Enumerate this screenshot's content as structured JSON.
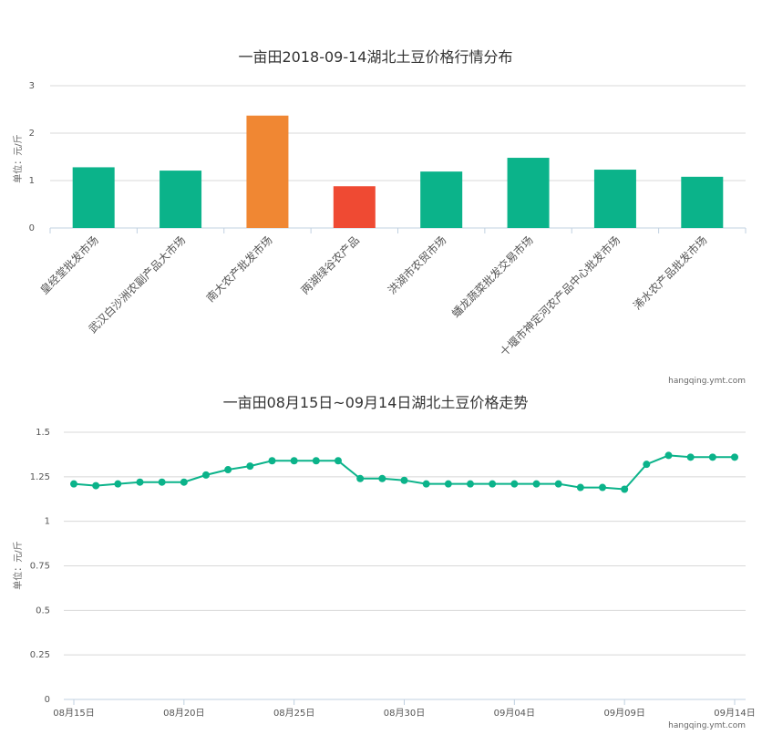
{
  "chart_data": [
    {
      "type": "bar",
      "title": "一亩田2018-09-14湖北土豆价格行情分布",
      "ylabel": "单位：元/斤",
      "xlabel": "",
      "ylim": [
        0,
        3
      ],
      "yticks": [
        "0",
        "1",
        "2",
        "3"
      ],
      "categories": [
        "皇经堂批发市场",
        "武汉白沙洲农副产品大市场",
        "南大农产批发市场",
        "两湖绿谷农产品",
        "洪湖市农贸市场",
        "蟠龙蔬菜批发交易市场",
        "十堰市神定河农产品中心批发市场",
        "浠水农产品批发市场"
      ],
      "values": [
        1.28,
        1.21,
        2.37,
        0.88,
        1.19,
        1.48,
        1.23,
        1.08
      ],
      "bar_colors": [
        "#0bb38a",
        "#0bb38a",
        "#f08733",
        "#ef4a33",
        "#0bb38a",
        "#0bb38a",
        "#0bb38a",
        "#0bb38a"
      ],
      "grid": true,
      "credit": "hangqing.ymt.com"
    },
    {
      "type": "line",
      "title": "一亩田08月15日~09月14日湖北土豆价格走势",
      "ylabel": "单位：元/斤",
      "xlabel": "",
      "ylim": [
        0,
        1.5
      ],
      "yticks": [
        "0",
        "0.25",
        "0.5",
        "0.75",
        "1",
        "1.25",
        "1.5"
      ],
      "xticks": [
        "08月15日",
        "08月20日",
        "08月25日",
        "08月30日",
        "09月04日",
        "09月09日",
        "09月14日"
      ],
      "x": [
        "08-15",
        "08-16",
        "08-17",
        "08-18",
        "08-19",
        "08-20",
        "08-21",
        "08-22",
        "08-23",
        "08-24",
        "08-25",
        "08-26",
        "08-27",
        "08-28",
        "08-29",
        "08-30",
        "08-31",
        "09-01",
        "09-02",
        "09-03",
        "09-04",
        "09-05",
        "09-06",
        "09-07",
        "09-08",
        "09-09",
        "09-10",
        "09-11",
        "09-12",
        "09-13",
        "09-14"
      ],
      "values": [
        1.21,
        1.2,
        1.21,
        1.22,
        1.22,
        1.22,
        1.26,
        1.29,
        1.31,
        1.34,
        1.34,
        1.34,
        1.34,
        1.24,
        1.24,
        1.23,
        1.21,
        1.21,
        1.21,
        1.21,
        1.21,
        1.21,
        1.21,
        1.19,
        1.19,
        1.18,
        1.32,
        1.37,
        1.36,
        1.36,
        1.36
      ],
      "color": "#0bb38a",
      "grid": true,
      "credit": "hangqing.ymt.com"
    }
  ]
}
